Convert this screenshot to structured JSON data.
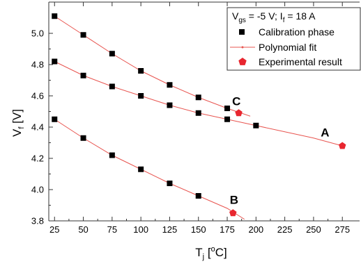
{
  "chart_data": {
    "type": "scatter",
    "xlabel": {
      "main": "T",
      "sub": "j",
      "open": " [",
      "sup": "o",
      "close": "C]"
    },
    "ylabel": {
      "main": "V",
      "sub": "f",
      "rest": " [V]"
    },
    "xlim": [
      20,
      290
    ],
    "ylim": [
      3.8,
      5.2
    ],
    "xticks": [
      25,
      50,
      75,
      100,
      125,
      150,
      175,
      200,
      225,
      250,
      275
    ],
    "yticks": [
      3.8,
      4.0,
      4.2,
      4.4,
      4.6,
      4.8,
      5.0
    ],
    "xtick_labels": [
      "25",
      "50",
      "75",
      "100",
      "125",
      "150",
      "175",
      "200",
      "225",
      "250",
      "275"
    ],
    "ytick_labels": [
      "3.8",
      "4.0",
      "4.2",
      "4.4",
      "4.6",
      "4.8",
      "5.0"
    ],
    "grid": false,
    "legend_position": "top-right",
    "legend": {
      "condition": {
        "v": "V",
        "gs": "gs",
        "mid": " = -5 V; I",
        "f": "f",
        "end": " = 18 A"
      },
      "entries": [
        "Calibration phase",
        "Polynomial fit",
        "Experimental result"
      ]
    },
    "colors": {
      "calibration": "#000000",
      "fit": "#e8544f",
      "experimental": "#e8262f"
    },
    "series": [
      {
        "name": "Calibration phase",
        "kind": "calibration",
        "groups": [
          {
            "x": [
              25,
              50,
              75,
              100,
              125,
              150,
              175
            ],
            "y": [
              5.11,
              4.99,
              4.87,
              4.76,
              4.67,
              4.59,
              4.52
            ]
          },
          {
            "x": [
              25,
              50,
              75,
              100,
              125,
              150,
              175,
              200
            ],
            "y": [
              4.82,
              4.73,
              4.66,
              4.6,
              4.54,
              4.49,
              4.45,
              4.41
            ]
          },
          {
            "x": [
              25,
              50,
              75,
              100,
              125,
              150
            ],
            "y": [
              4.45,
              4.33,
              4.22,
              4.13,
              4.04,
              3.96
            ]
          }
        ]
      },
      {
        "name": "Polynomial fit",
        "kind": "fit",
        "groups": [
          {
            "x": [
              25,
              50,
              75,
              100,
              125,
              150,
              175,
              195
            ],
            "y": [
              5.11,
              4.99,
              4.87,
              4.76,
              4.67,
              4.59,
              4.52,
              4.47
            ]
          },
          {
            "x": [
              25,
              50,
              75,
              100,
              125,
              150,
              175,
              200,
              225,
              250,
              275
            ],
            "y": [
              4.82,
              4.73,
              4.66,
              4.6,
              4.54,
              4.49,
              4.45,
              4.41,
              4.37,
              4.33,
              4.28
            ]
          },
          {
            "x": [
              25,
              50,
              75,
              100,
              125,
              150,
              175,
              190
            ],
            "y": [
              4.45,
              4.33,
              4.22,
              4.13,
              4.04,
              3.96,
              3.88,
              3.81
            ]
          }
        ]
      },
      {
        "name": "Experimental result",
        "kind": "experimental",
        "x": [
          185,
          275,
          180
        ],
        "y": [
          4.49,
          4.28,
          3.85
        ],
        "labels": [
          "C",
          "A",
          "B"
        ]
      }
    ],
    "annotations": [
      {
        "text": "C",
        "x": 183,
        "y": 4.54
      },
      {
        "text": "A",
        "x": 260,
        "y": 4.34
      },
      {
        "text": "B",
        "x": 181,
        "y": 3.91
      }
    ]
  }
}
